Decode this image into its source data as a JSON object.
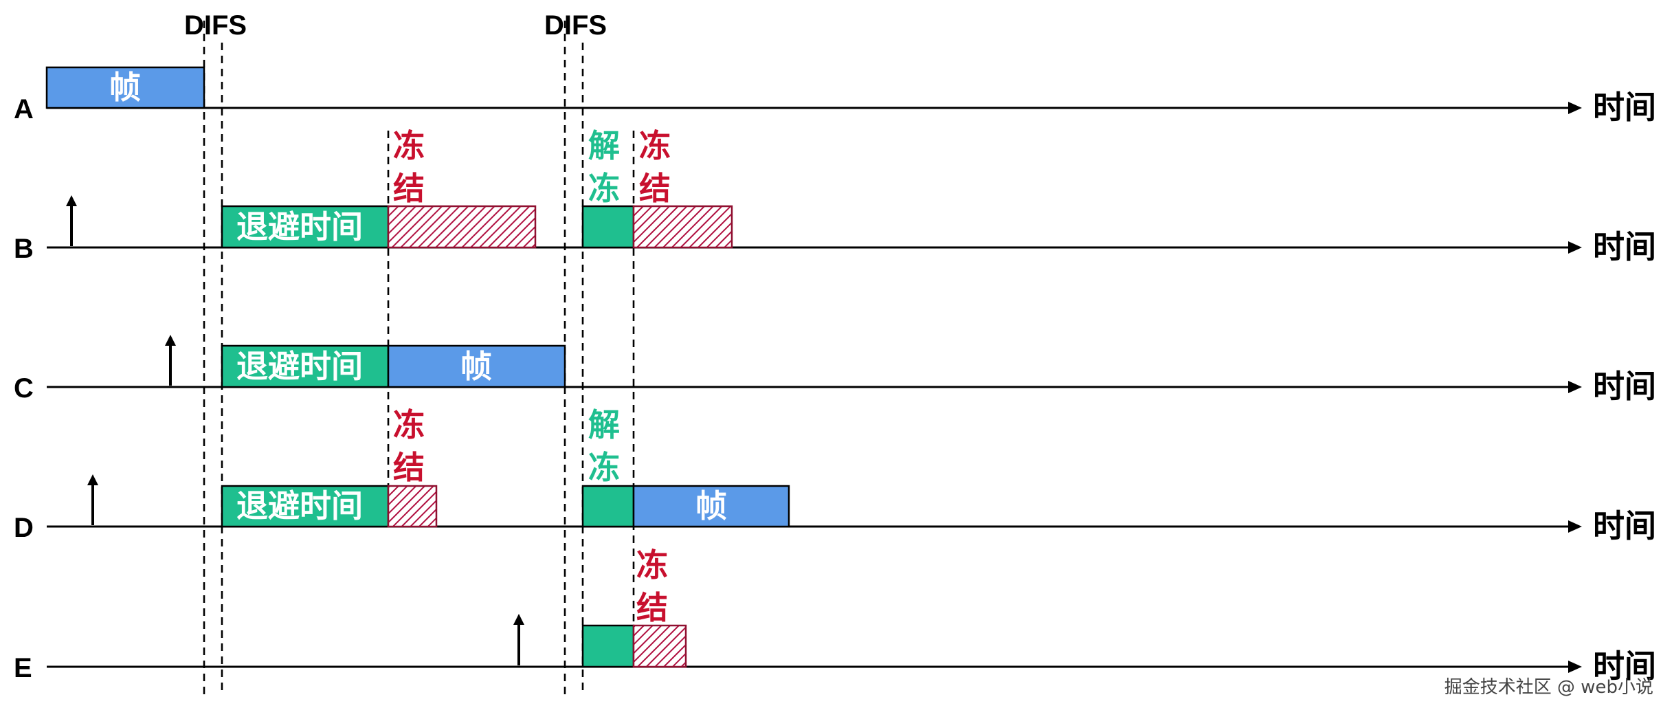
{
  "labels": {
    "difs": "DIFS",
    "time": "时间",
    "frame": "帧",
    "backoff": "退避时间",
    "freeze_line1": "冻",
    "freeze_line2": "结",
    "unfreeze_line1": "解",
    "unfreeze_line2": "冻"
  },
  "stations": [
    "A",
    "B",
    "C",
    "D",
    "E"
  ],
  "colors": {
    "frame": "#5b9ae8",
    "backoff": "#1fbf8f",
    "freeze_text": "#c8102e",
    "unfreeze_text": "#1fbf8f",
    "hatch": "#b01040"
  },
  "watermark": "掘金技术社区 @ web小说"
}
